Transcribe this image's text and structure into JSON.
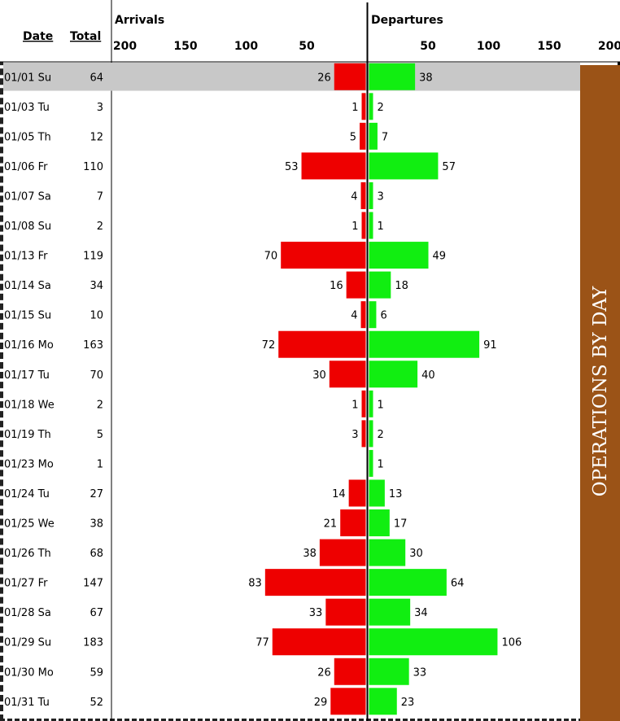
{
  "header": {
    "date_label": "Date",
    "total_label": "Total",
    "arrivals_label": "Arrivals",
    "departures_label": "Departures"
  },
  "side_banner": {
    "text": "OPERATIONS BY DAY",
    "color": "#9b5317"
  },
  "colors": {
    "arrival": "#ee0000",
    "departure": "#11ee11",
    "highlight": "#c8c8c8"
  },
  "chart_data": {
    "type": "bar",
    "orientation": "horizontal-diverging",
    "arrival_axis_ticks": [
      "200",
      "150",
      "100",
      "50"
    ],
    "departure_axis_ticks": [
      "50",
      "100",
      "150",
      "200"
    ],
    "axis_range": [
      0,
      200
    ],
    "highlighted_row": 0,
    "categories": [
      "01/01 Su",
      "01/03 Tu",
      "01/05 Th",
      "01/06 Fr",
      "01/07 Sa",
      "01/08 Su",
      "01/13 Fr",
      "01/14 Sa",
      "01/15 Su",
      "01/16 Mo",
      "01/17 Tu",
      "01/18 We",
      "01/19 Th",
      "01/23 Mo",
      "01/24 Tu",
      "01/25 We",
      "01/26 Th",
      "01/27 Fr",
      "01/28 Sa",
      "01/29 Su",
      "01/30 Mo",
      "01/31 Tu"
    ],
    "totals": [
      64,
      3,
      12,
      110,
      7,
      2,
      119,
      34,
      10,
      163,
      70,
      2,
      5,
      1,
      27,
      38,
      68,
      147,
      67,
      183,
      59,
      52
    ],
    "series": [
      {
        "name": "Arrivals",
        "values": [
          26,
          1,
          5,
          53,
          4,
          1,
          70,
          16,
          4,
          72,
          30,
          1,
          3,
          null,
          14,
          21,
          38,
          83,
          33,
          77,
          26,
          29
        ]
      },
      {
        "name": "Departures",
        "values": [
          38,
          2,
          7,
          57,
          3,
          1,
          49,
          18,
          6,
          91,
          40,
          1,
          2,
          1,
          13,
          17,
          30,
          64,
          34,
          106,
          33,
          23
        ]
      }
    ]
  }
}
